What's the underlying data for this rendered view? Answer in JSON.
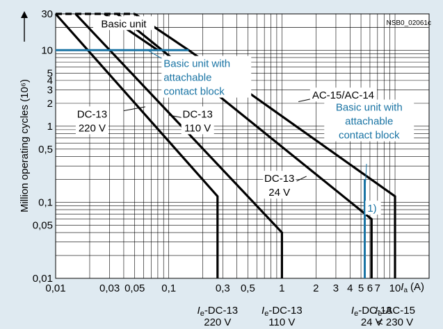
{
  "chart_data": {
    "type": "line",
    "x_scale": "log",
    "y_scale": "log",
    "xlim": [
      0.01,
      20
    ],
    "ylim": [
      0.01,
      30
    ],
    "ylabel": "Million operating cycles (10⁶)",
    "xlabel_symbol": "I",
    "xlabel_subscript": "a",
    "xlabel_unit": "(A)",
    "code": "NSB0_02061c",
    "grid": true,
    "x_ticks": [
      {
        "v": 0.01,
        "t": "0,01"
      },
      {
        "v": 0.03,
        "t": "0,03"
      },
      {
        "v": 0.05,
        "t": "0,05"
      },
      {
        "v": 0.1,
        "t": "0,1"
      },
      {
        "v": 0.3,
        "t": "0,3"
      },
      {
        "v": 0.5,
        "t": "0,5"
      },
      {
        "v": 1,
        "t": "1"
      },
      {
        "v": 2,
        "t": "2"
      },
      {
        "v": 3,
        "t": "3"
      },
      {
        "v": 4,
        "t": "4"
      },
      {
        "v": 5,
        "t": "5"
      },
      {
        "v": 6,
        "t": "6"
      },
      {
        "v": 7,
        "t": "7"
      },
      {
        "v": 10,
        "t": "10"
      }
    ],
    "y_ticks": [
      {
        "v": 0.01,
        "t": "0,01"
      },
      {
        "v": 0.05,
        "t": "0,05"
      },
      {
        "v": 0.1,
        "t": "0,1"
      },
      {
        "v": 0.5,
        "t": "0,5"
      },
      {
        "v": 1,
        "t": "1"
      },
      {
        "v": 2,
        "t": "2"
      },
      {
        "v": 3,
        "t": "3"
      },
      {
        "v": 4,
        "t": "4"
      },
      {
        "v": 5,
        "t": "5"
      },
      {
        "v": 10,
        "t": "10"
      },
      {
        "v": 30,
        "t": "30"
      }
    ],
    "series": [
      {
        "name": "DC-13 220 V",
        "color": "#000000",
        "dashed": false,
        "points": [
          [
            0.01,
            30
          ],
          [
            0.27,
            0.12
          ],
          [
            0.27,
            0.01
          ]
        ]
      },
      {
        "name": "DC-13 110 V",
        "color": "#000000",
        "dashed": false,
        "points": [
          [
            0.015,
            30
          ],
          [
            1.0,
            0.04
          ],
          [
            1.0,
            0.01
          ]
        ]
      },
      {
        "name": "Basic unit",
        "color": "#000000",
        "dashed": false,
        "points": [
          [
            0.027,
            30
          ],
          [
            0.08,
            10
          ]
        ]
      },
      {
        "name": "DC-13 24 V",
        "color": "#000000",
        "dashed": false,
        "points": [
          [
            0.035,
            30
          ],
          [
            6.2,
            0.06
          ],
          [
            6.2,
            0.01
          ]
        ]
      },
      {
        "name": "AC-15/AC-14",
        "color": "#000000",
        "dashed": false,
        "points": [
          [
            0.05,
            30
          ],
          [
            0.15,
            10
          ],
          [
            10,
            0.12
          ],
          [
            10,
            0.01
          ]
        ]
      },
      {
        "name": "",
        "color": "#000000",
        "dashed": true,
        "points": [
          [
            0.01,
            30
          ],
          [
            0.05,
            30
          ]
        ]
      },
      {
        "name": "Basic unit with attachable contact block",
        "color": "#1a74a4",
        "dashed": false,
        "points": [
          [
            0.01,
            10
          ],
          [
            0.15,
            10
          ]
        ]
      },
      {
        "name": "Basic unit with attachable contact block",
        "color": "#1a74a4",
        "dashed": false,
        "points": [
          [
            5.4,
            0.2
          ],
          [
            5.4,
            0.01
          ]
        ]
      }
    ],
    "annotations": [
      {
        "lines": [
          "Basic unit"
        ],
        "color": "#000000",
        "x": 0.04,
        "y": 20,
        "anchor": "middle",
        "ldx": -999
      },
      {
        "lines": [
          "Basic unit with",
          "attachable",
          "contact block"
        ],
        "color": "#1a74a4",
        "x": 0.09,
        "y": 6,
        "anchor": "start",
        "ldx": 0,
        "leader": [
          [
            0.09,
            7.5
          ],
          [
            0.065,
            10
          ]
        ]
      },
      {
        "lines": [
          "AC-15/AC-14"
        ],
        "color": "#000000",
        "x": 1.85,
        "y": 2.3,
        "anchor": "start",
        "leader": [
          [
            1.85,
            2.3
          ],
          [
            1.4,
            2.1
          ]
        ]
      },
      {
        "lines": [
          "DC-13",
          "220 V"
        ],
        "color": "#000000",
        "x": 0.021,
        "y": 1.3,
        "anchor": "middle",
        "leader": [
          [
            0.04,
            1.6
          ],
          [
            0.062,
            1.8
          ]
        ]
      },
      {
        "lines": [
          "DC-13",
          "110 V"
        ],
        "color": "#000000",
        "x": 0.18,
        "y": 1.3,
        "anchor": "middle",
        "leader": [
          [
            0.13,
            1.3
          ],
          [
            0.1,
            1.4
          ]
        ]
      },
      {
        "lines": [
          "DC-13",
          "24 V"
        ],
        "color": "#000000",
        "x": 0.95,
        "y": 0.185,
        "anchor": "middle",
        "leader": [
          [
            1.35,
            0.19
          ],
          [
            1.65,
            0.22
          ]
        ]
      },
      {
        "lines": [
          "Basic unit with",
          "attachable",
          "contact block"
        ],
        "color": "#1a74a4",
        "x": 5.9,
        "y": 1.6,
        "anchor": "middle",
        "leader": [
          [
            5.6,
            0.32
          ],
          [
            5.4,
            0.12
          ]
        ]
      },
      {
        "lines": [
          "1)"
        ],
        "color": "#1a74a4",
        "x": 5.7,
        "y": 0.075,
        "anchor": "start"
      }
    ],
    "rated_currents": [
      {
        "sym": "I",
        "sub": "e",
        "rest": "-DC-13",
        "line2": "220 V",
        "x": 0.27
      },
      {
        "sym": "I",
        "sub": "e",
        "rest": "-DC-13",
        "line2": "110 V",
        "x": 1.0
      },
      {
        "sym": "I",
        "sub": "e",
        "rest": "-DC-13",
        "line2": "24 V",
        "x": 6.2
      },
      {
        "sym": "I",
        "sub": "e",
        "rest": "-AC-15",
        "line2": "< 230 V",
        "x": 10
      }
    ]
  }
}
